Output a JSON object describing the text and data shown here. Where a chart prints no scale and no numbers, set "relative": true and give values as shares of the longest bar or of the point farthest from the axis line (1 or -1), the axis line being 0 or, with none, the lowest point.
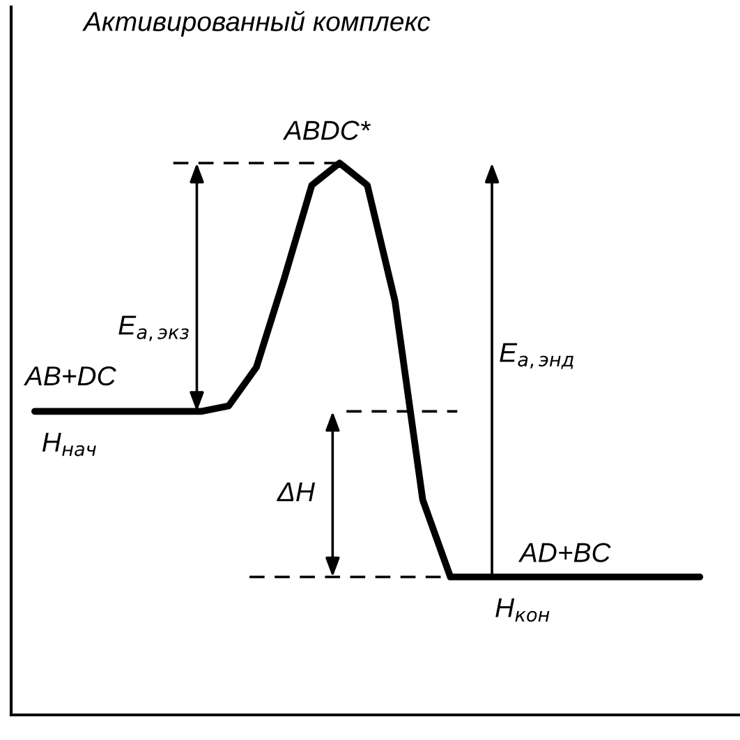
{
  "chart_data": {
    "type": "line",
    "relative": true,
    "title": "Активированный комплекс",
    "categories": [
      null,
      null,
      null,
      null,
      null,
      null,
      null,
      null,
      null,
      null,
      null,
      null,
      null,
      null,
      null,
      null,
      null,
      null,
      null,
      null,
      null,
      null,
      null,
      null,
      null
    ],
    "series": [
      {
        "color": "#000000",
        "values": [
          0.55,
          0.55,
          0.55,
          0.55,
          0.55,
          0.55,
          0.55,
          0.56,
          0.63,
          0.79,
          0.96,
          1.0,
          0.96,
          0.75,
          0.39,
          0.25,
          0.25,
          0.25,
          0.25,
          0.25,
          0.25,
          0.25,
          0.25,
          0.25,
          0.25
        ]
      }
    ],
    "ref_lines": [
      {
        "axis": "y",
        "value": 1.0,
        "color": "#000000",
        "line_style": "dashed"
      },
      {
        "axis": "y",
        "value": 0.55,
        "color": "#000000",
        "line_style": "dashed"
      },
      {
        "axis": "y",
        "value": 0.25,
        "color": "#000000",
        "line_style": "dashed"
      }
    ],
    "annotations": [
      "ABDC*",
      "E$_{а,экз}$",
      "AB+DC",
      "H$_{нач}$",
      "ΔH",
      "E$_{а,энд}$",
      "AD+BC",
      "H$_{кон}$"
    ],
    "legend": false,
    "marker": "none",
    "line_style": "solid"
  }
}
